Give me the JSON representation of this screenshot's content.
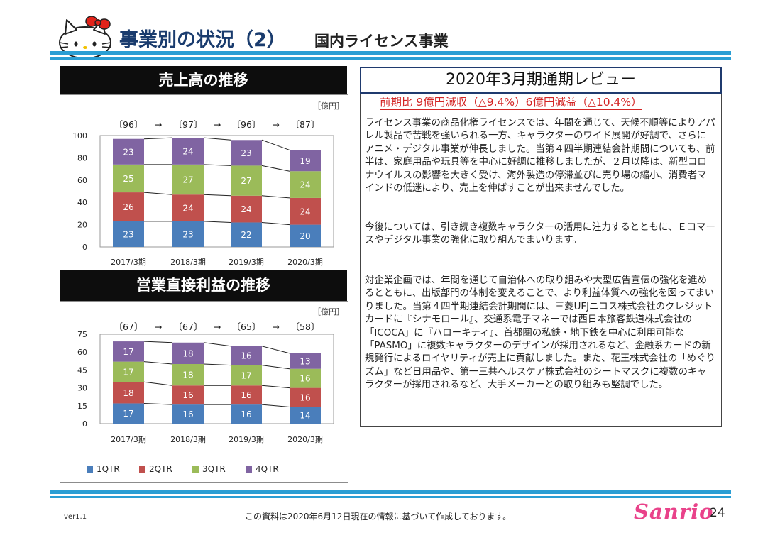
{
  "header": {
    "title": "事業別の状況（2）",
    "subtitle": "国内ライセンス事業"
  },
  "sales_section": {
    "title": "売上高の推移"
  },
  "profit_section": {
    "title": "営業直接利益の推移"
  },
  "chart_data": [
    {
      "type": "bar",
      "stacked": true,
      "unit_label": "［億円］",
      "categories": [
        "2017/3期",
        "2018/3期",
        "2019/3期",
        "2020/3期"
      ],
      "totals": [
        "〔96〕",
        "〔97〕",
        "〔96〕",
        "〔87〕"
      ],
      "arrow": "→",
      "ylim": [
        0,
        100
      ],
      "yticks": [
        0,
        20,
        40,
        60,
        80,
        100
      ],
      "series": [
        {
          "name": "1QTR",
          "values": [
            23,
            23,
            22,
            20
          ]
        },
        {
          "name": "2QTR",
          "values": [
            26,
            24,
            24,
            24
          ]
        },
        {
          "name": "3QTR",
          "values": [
            25,
            27,
            27,
            24
          ]
        },
        {
          "name": "4QTR",
          "values": [
            23,
            24,
            23,
            19
          ]
        }
      ]
    },
    {
      "type": "bar",
      "stacked": true,
      "unit_label": "［億円］",
      "categories": [
        "2017/3期",
        "2018/3期",
        "2019/3期",
        "2020/3期"
      ],
      "totals": [
        "〔67〕",
        "〔67〕",
        "〔65〕",
        "〔58〕"
      ],
      "arrow": "→",
      "ylim": [
        0,
        75
      ],
      "yticks": [
        0,
        15,
        30,
        45,
        60,
        75
      ],
      "series": [
        {
          "name": "1QTR",
          "values": [
            17,
            16,
            16,
            14
          ]
        },
        {
          "name": "2QTR",
          "values": [
            18,
            16,
            16,
            16
          ]
        },
        {
          "name": "3QTR",
          "values": [
            17,
            18,
            17,
            16
          ]
        },
        {
          "name": "4QTR",
          "values": [
            17,
            18,
            16,
            13
          ]
        }
      ]
    }
  ],
  "colors": {
    "q1": "#4a7ebb",
    "q2": "#c0504d",
    "q3": "#9bbb59",
    "q4": "#8064a2",
    "accent": "#2a9ed4",
    "highlight": "#d32424"
  },
  "legend": [
    {
      "label": "1QTR",
      "color": "#4a7ebb"
    },
    {
      "label": "2QTR",
      "color": "#c0504d"
    },
    {
      "label": "3QTR",
      "color": "#9bbb59"
    },
    {
      "label": "4QTR",
      "color": "#8064a2"
    }
  ],
  "review": {
    "title": "2020年3月期通期レビュー",
    "highlight": "前期比 9億円減収（△9.4%）6億円減益（△10.4%）",
    "paragraphs": [
      "ライセンス事業の商品化権ライセンスでは、年間を通じて、天候不順等によりアパレル製品で苦戦を強いられる一方、キャラクターのワイド展開が好調で、さらにアニメ・デジタル事業が伸長しました。当第４四半期連結会計期間についても、前半は、家庭用品や玩具等を中心に好調に推移しましたが、２月以降は、新型コロナウイルスの影響を大きく受け、海外製造の停滞並びに売り場の縮小、消費者マインドの低迷により、売上を伸ばすことが出来ませんでした。",
      "今後については、引き続き複数キャラクターの活用に注力するとともに、Ｅコマースやデジタル事業の強化に取り組んでまいります。",
      "対企業企画では、年間を通じて自治体への取り組みや大型広告宣伝の強化を進めるとともに、出版部門の体制を変えることで、より利益体質への強化を図ってまいりました。当第４四半期連結会計期間には、三菱UFJニコス株式会社のクレジットカードに『シナモロール』、交通系電子マネーでは西日本旅客鉄道株式会社の「ICOCA」に『ハローキティ』、首都圏の私鉄・地下鉄を中心に利用可能な「PASMO」に複数キャラクターのデザインが採用されるなど、金融系カードの新規発行によるロイヤリティが売上に貢献しました。また、花王株式会社の「めぐりズム」など日用品や、第一三共ヘルスケア株式会社のシートマスクに複数のキャラクターが採用されるなど、大手メーカーとの取り組みも堅調でした。"
    ]
  },
  "footer": {
    "version": "ver1.1",
    "note": "この資料は2020年6月12日現在の情報に基づいて作成しております。",
    "page": "24",
    "logo_text": "Sanrio"
  }
}
